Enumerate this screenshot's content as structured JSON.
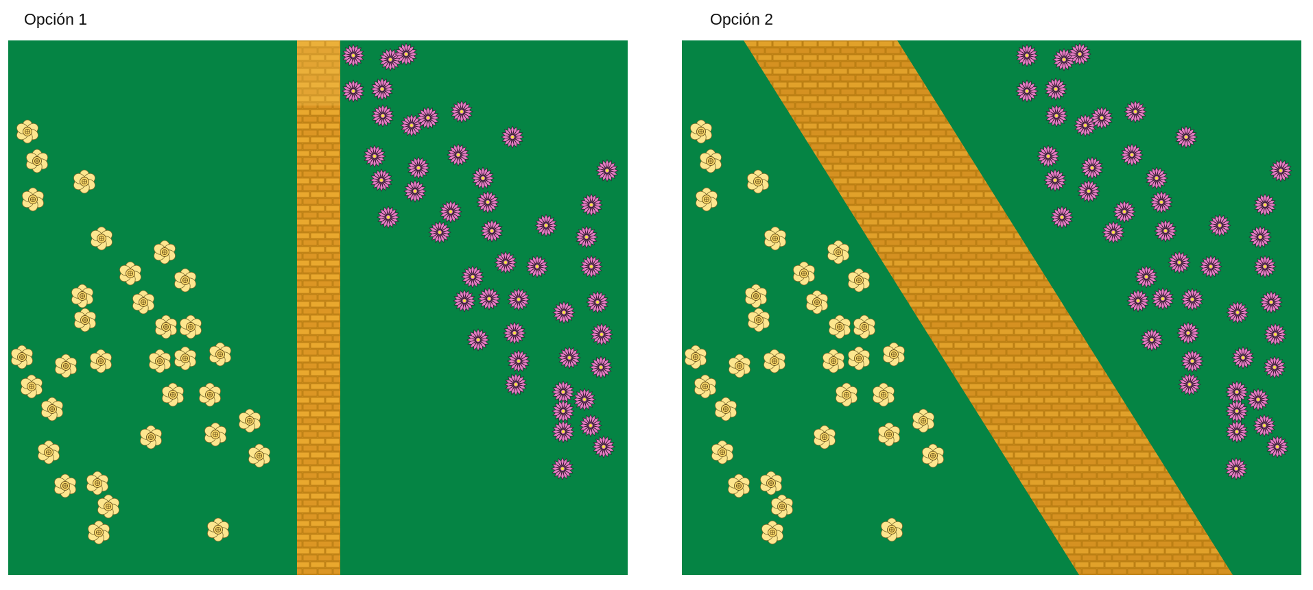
{
  "options": [
    {
      "label": "Opción 1"
    },
    {
      "label": "Opción 2"
    }
  ],
  "colors": {
    "grass": "#058444",
    "path": "#E3A02A",
    "path_dark": "#B87C12",
    "yellow_flower": "#FDE68F",
    "pink_flower": "#E57FC4",
    "flower_center": "#F2E33E"
  },
  "icons": {
    "yellow_flower": "yellow-flower-icon",
    "pink_flower": "pink-flower-icon",
    "path": "brick-path"
  }
}
